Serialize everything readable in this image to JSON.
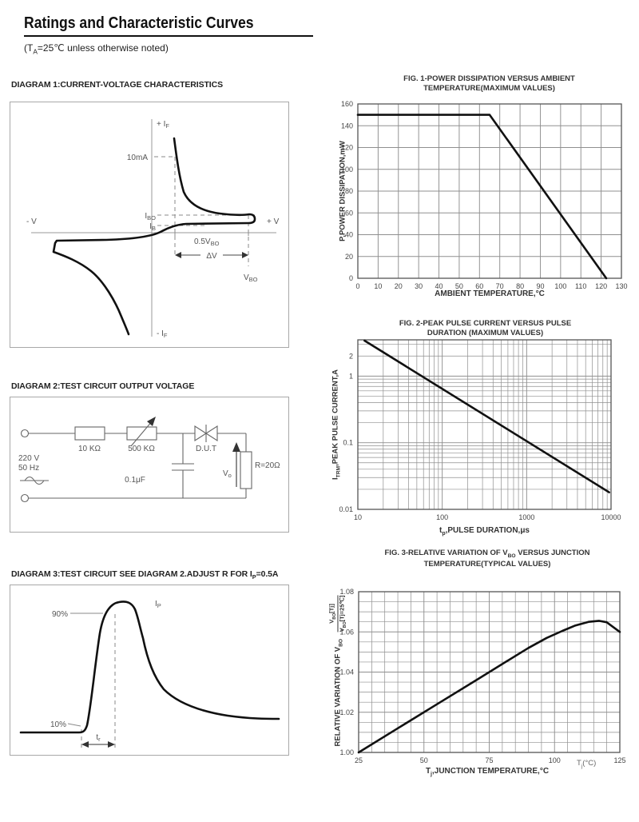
{
  "page": {
    "title": "Ratings and Characteristic Curves",
    "subtitle_pre": "(T",
    "subtitle_sub": "A",
    "subtitle_post": "=25℃  unless otherwise noted)"
  },
  "diagram1": {
    "heading": "DIAGRAM 1:CURRENT-VOLTAGE CHARACTERISTICS",
    "labels": {
      "y_pos_base": "+ I",
      "y_pos_sub": "F",
      "y_neg_base": "- I",
      "y_neg_sub": "F",
      "x_pos": "+ V",
      "x_neg": "- V",
      "i10ma": "10mA",
      "ibo_base": "I",
      "ibo_sub": "BO",
      "ib_base": "I",
      "ib_sub": "B",
      "half_vbo_base": "0.5V",
      "half_vbo_sub": "BO",
      "delta_v": "ΔV",
      "vbo_base": "V",
      "vbo_sub": "BO"
    }
  },
  "diagram2": {
    "heading": "DIAGRAM 2:TEST CIRCUIT OUTPUT VOLTAGE",
    "labels": {
      "voltage": "220 V",
      "frequency": "50 Hz",
      "r1": "10 KΩ",
      "r2": "500 KΩ",
      "capacitor": "0.1μF",
      "dut": "D.U.T",
      "vo_base": "V",
      "vo_sub": "o",
      "rload": "R=20Ω"
    }
  },
  "diagram3": {
    "heading_pre": "DIAGRAM 3:TEST CIRCUIT SEE DIAGRAM 2.ADJUST R FOR I",
    "heading_sub": "P",
    "heading_post": "=0.5A",
    "labels": {
      "ip_base": "I",
      "ip_sub": "P",
      "p90": "90%",
      "p10": "10%",
      "tr_base": "t",
      "tr_sub": "r"
    }
  },
  "chart_data": [
    {
      "id": "fig1",
      "type": "line",
      "title1": "FIG. 1-POWER DISSIPATION VERSUS AMBIENT",
      "title2": "TEMPERATURE(MAXIMUM VALUES)",
      "xlabel": "AMBIENT TEMPERATURE,°C",
      "ylabel": "P,POWER DISSIPATION,mW",
      "xscale": "linear",
      "yscale": "linear",
      "xlim": [
        0,
        130
      ],
      "ylim": [
        0,
        160
      ],
      "grid": true,
      "legend": "none",
      "x_ticks": {
        "values": [
          0,
          10,
          20,
          30,
          40,
          50,
          60,
          70,
          80,
          90,
          100,
          110,
          120,
          130
        ],
        "labels": [
          "0",
          "10",
          "20",
          "30",
          "40",
          "50",
          "60",
          "70",
          "80",
          "90",
          "100",
          "110",
          "120",
          "130"
        ]
      },
      "y_ticks": {
        "values": [
          0,
          20,
          40,
          60,
          80,
          100,
          120,
          140,
          160
        ],
        "labels": [
          "0",
          "20",
          "40",
          "60",
          "80",
          "100",
          "120",
          "140",
          "160"
        ]
      },
      "x_minor": null,
      "y_minor": null,
      "series": [
        {
          "name": "maximum power dissipation",
          "points": [
            [
              0,
              150
            ],
            [
              65,
              150
            ],
            [
              122.5,
              0
            ]
          ]
        }
      ]
    },
    {
      "id": "fig2",
      "type": "line",
      "title1": "FIG. 2-PEAK PULSE CURRENT VERSUS PULSE",
      "title2": "DURATION (MAXIMUM VALUES)",
      "xlabel_pre": "t",
      "xlabel_sub": "p",
      "xlabel_post": ",PULSE DURATION,μs",
      "ylabel_pre": "I",
      "ylabel_sub": "TRM",
      "ylabel_post": ",PEAK PULSE CURRENT,A",
      "xscale": "log",
      "yscale": "log",
      "xlim": [
        10,
        10000
      ],
      "ylim": [
        0.01,
        3.5
      ],
      "grid": true,
      "legend": "none",
      "x_ticks": {
        "values": [
          10,
          100,
          1000,
          10000
        ],
        "labels": [
          "10",
          "100",
          "1000",
          "10000"
        ]
      },
      "y_ticks": {
        "values": [
          2,
          1,
          0.1,
          0.01
        ],
        "labels": [
          "2",
          "1",
          "0.1",
          "0.01"
        ]
      },
      "series": [
        {
          "name": "maximum peak pulse current",
          "points": [
            [
              12,
              3.4
            ],
            [
              9500,
              0.018
            ]
          ]
        }
      ]
    },
    {
      "id": "fig3",
      "type": "line",
      "title1_pre": "FIG. 3-RELATIVE VARIATION OF V",
      "title1_sub": "BO",
      "title1_post": " VERSUS JUNCTION",
      "title2": "TEMPERATURE(TYPICAL VALUES)",
      "xlabel_pre": "T",
      "xlabel_sub": "j",
      "xlabel_post": ",JUNCTION TEMPERATURE,°C",
      "x_annotation_pre": "T",
      "x_annotation_sub": "j",
      "x_annotation_post": "(°C)",
      "ylabel_main_pre": "RELATIVE VARIATION OF V",
      "ylabel_main_sub": "BO",
      "ylabel_frac_num_pre": "V",
      "ylabel_frac_num_sub": "BO",
      "ylabel_frac_num_post": "[Tj]",
      "ylabel_frac_den_pre": "V",
      "ylabel_frac_den_sub": "BO",
      "ylabel_frac_den_post": "[Tj=25℃]",
      "xscale": "linear",
      "yscale": "linear",
      "xlim": [
        25,
        125
      ],
      "ylim": [
        1.0,
        1.08
      ],
      "grid": true,
      "legend": "none",
      "x_ticks": {
        "values": [
          25,
          50,
          75,
          100,
          125
        ],
        "labels": [
          "25",
          "50",
          "75",
          "100",
          "125"
        ]
      },
      "y_ticks": {
        "values": [
          1.0,
          1.02,
          1.04,
          1.06,
          1.08
        ],
        "labels": [
          "1.00",
          "1.02",
          "1.04",
          "1.06",
          "1.08"
        ]
      },
      "x_minor": 5,
      "y_minor": 0.005,
      "series": [
        {
          "name": "relative variation of VBO",
          "points": [
            [
              25,
              1.0
            ],
            [
              40,
              1.012
            ],
            [
              55,
              1.024
            ],
            [
              70,
              1.036
            ],
            [
              82,
              1.0456
            ],
            [
              90,
              1.052
            ],
            [
              97,
              1.057
            ],
            [
              103,
              1.0605
            ],
            [
              108,
              1.0632
            ],
            [
              113,
              1.065
            ],
            [
              117,
              1.0655
            ],
            [
              120,
              1.0648
            ],
            [
              125,
              1.06
            ]
          ]
        }
      ]
    }
  ]
}
